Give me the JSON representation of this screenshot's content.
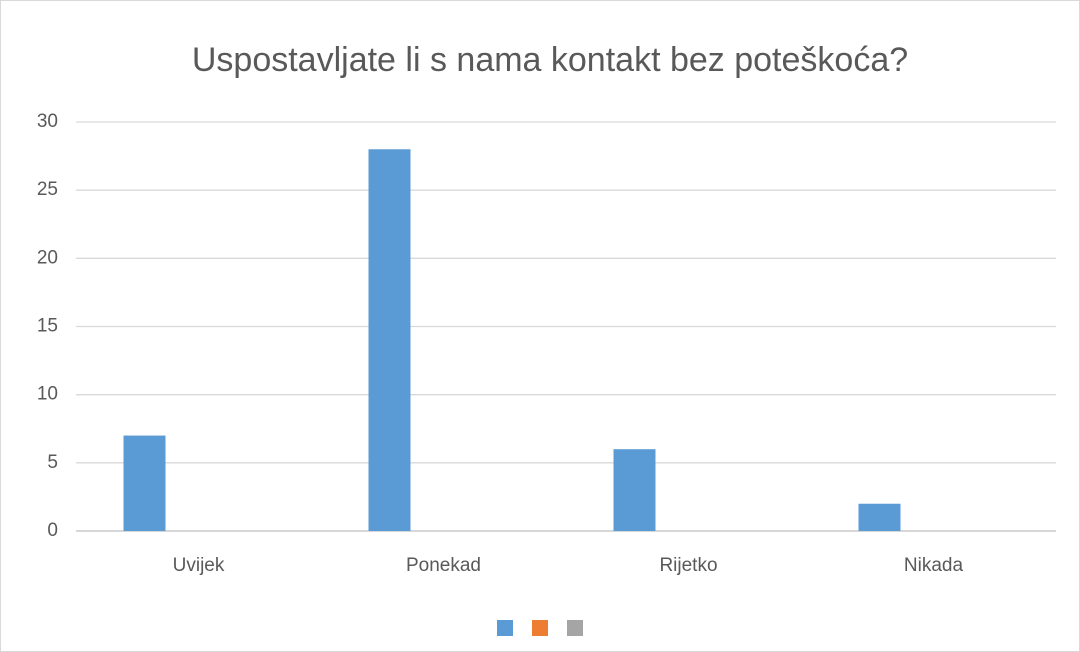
{
  "chart_data": {
    "type": "bar",
    "title": "Uspostavljate li s nama kontakt bez poteškoća?",
    "categories": [
      "Uvijek",
      "Ponekad",
      "Rijetko",
      "Nikada"
    ],
    "series": [
      {
        "color": "#5b9bd5",
        "values": [
          7,
          28,
          6,
          2
        ]
      },
      {
        "color": "#ed7d31",
        "values": [
          null,
          null,
          null,
          null
        ]
      },
      {
        "color": "#a5a5a5",
        "values": [
          null,
          null,
          null,
          null
        ]
      }
    ],
    "ylim": [
      0,
      30
    ],
    "yticks": [
      0,
      5,
      10,
      15,
      20,
      25,
      30
    ],
    "grid": true,
    "legend": "bottom"
  }
}
